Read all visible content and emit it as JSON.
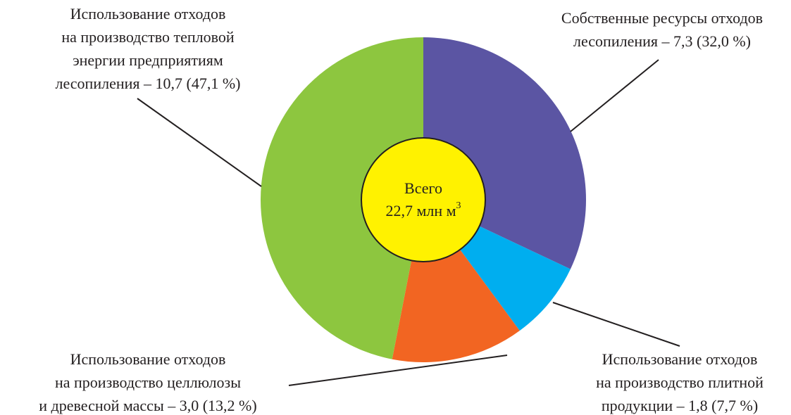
{
  "chart_data": {
    "type": "pie",
    "categories": [
      [
        "Собственные ресурсы отходов",
        "лесопиления –"
      ],
      [
        "Использование отходов",
        "на производство плитной",
        "продукции –"
      ],
      [
        "Использование отходов",
        "на производство целлюлозы",
        "и древесной массы –"
      ],
      [
        "Использование отходов",
        "на производство тепловой",
        "энергии предприятиям",
        "лесопиления –"
      ]
    ],
    "values": [
      7.3,
      1.8,
      3.0,
      10.7
    ],
    "value_labels": [
      "7,3 (32,0 %)",
      "1,8 (7,7 %)",
      "3,0 (13,2 %)",
      "10,7 (47,1 %)"
    ],
    "colors": [
      "#5b55a3",
      "#00aeef",
      "#f26522",
      "#8dc63f"
    ],
    "center_text": [
      "Всего",
      "22,7 млн м"
    ],
    "center_sup": "3",
    "center_color": "#fff200"
  }
}
